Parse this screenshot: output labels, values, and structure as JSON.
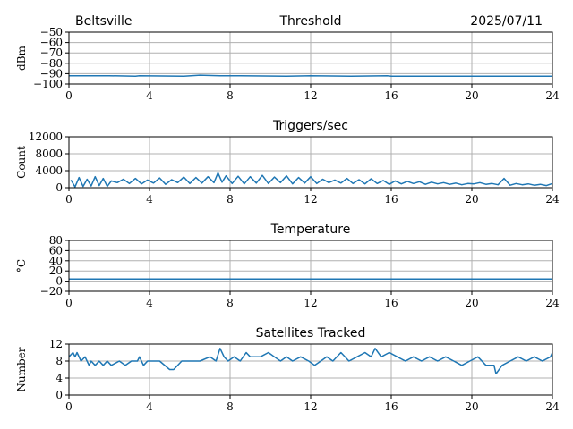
{
  "header": {
    "location": "Beltsville",
    "date": "2025/07/11"
  },
  "colors": {
    "series": "#1f77b4",
    "grid": "#b0b0b0"
  },
  "chart_data": [
    {
      "type": "line",
      "title": "Threshold",
      "ylabel": "dBm",
      "xlim": [
        0,
        24
      ],
      "ylim": [
        -100,
        -50
      ],
      "xticks": [
        0,
        4,
        8,
        12,
        16,
        20,
        24
      ],
      "yticks": [
        -100,
        -90,
        -80,
        -70,
        -60,
        -50
      ],
      "ytick_labels": [
        "−100",
        "−90",
        "−80",
        "−70",
        "−60",
        "−50"
      ],
      "grid": true,
      "series": [
        {
          "x": [
            0,
            2,
            3.3,
            3.5,
            5.7,
            6.5,
            7.5,
            8.5,
            10.8,
            12,
            14,
            15.8,
            16,
            24
          ],
          "y": [
            -92,
            -92,
            -92.5,
            -92,
            -92.5,
            -91.5,
            -92,
            -92,
            -92.5,
            -92,
            -92.5,
            -92,
            -92.5,
            -92.5
          ]
        }
      ]
    },
    {
      "type": "line",
      "title": "Triggers/sec",
      "ylabel": "Count",
      "xlim": [
        0,
        24
      ],
      "ylim": [
        0,
        12000
      ],
      "xticks": [
        0,
        4,
        8,
        12,
        16,
        20,
        24
      ],
      "yticks": [
        0,
        4000,
        8000,
        12000
      ],
      "ytick_labels": [
        "0",
        "4000",
        "8000",
        "12000"
      ],
      "grid": true,
      "series": [
        {
          "x": [
            0.1,
            0.3,
            0.5,
            0.7,
            0.9,
            1.1,
            1.3,
            1.5,
            1.7,
            1.9,
            2.1,
            2.4,
            2.7,
            3.0,
            3.3,
            3.6,
            3.9,
            4.2,
            4.5,
            4.8,
            5.1,
            5.4,
            5.7,
            6.0,
            6.3,
            6.6,
            6.9,
            7.2,
            7.4,
            7.6,
            7.8,
            8.1,
            8.4,
            8.7,
            9.0,
            9.3,
            9.6,
            9.9,
            10.2,
            10.5,
            10.8,
            11.1,
            11.4,
            11.7,
            12.0,
            12.3,
            12.6,
            12.9,
            13.2,
            13.5,
            13.8,
            14.1,
            14.4,
            14.7,
            15.0,
            15.3,
            15.6,
            15.9,
            16.2,
            16.5,
            16.8,
            17.1,
            17.4,
            17.7,
            18.0,
            18.3,
            18.6,
            18.9,
            19.2,
            19.5,
            19.8,
            20.1,
            20.4,
            20.7,
            21.0,
            21.3,
            21.6,
            21.9,
            22.2,
            22.5,
            22.8,
            23.1,
            23.4,
            23.7,
            24.0
          ],
          "y": [
            1800,
            200,
            2400,
            300,
            2000,
            400,
            2600,
            500,
            2200,
            300,
            1600,
            1200,
            2000,
            1000,
            2200,
            900,
            1800,
            1100,
            2300,
            800,
            1900,
            1200,
            2500,
            1000,
            2400,
            1100,
            2600,
            1200,
            3500,
            1300,
            2800,
            1000,
            2700,
            900,
            2600,
            1100,
            2900,
            1000,
            2500,
            1200,
            2800,
            900,
            2400,
            1100,
            2600,
            1000,
            2000,
            1200,
            1800,
            1100,
            2200,
            1000,
            1900,
            900,
            2100,
            1000,
            1700,
            800,
            1600,
            900,
            1500,
            1000,
            1400,
            800,
            1300,
            900,
            1200,
            800,
            1100,
            700,
            1000,
            900,
            1200,
            800,
            1000,
            700,
            2200,
            600,
            1000,
            700,
            900,
            600,
            800,
            500,
            1000
          ]
        }
      ]
    },
    {
      "type": "line",
      "title": "Temperature",
      "ylabel": "°C",
      "xlim": [
        0,
        24
      ],
      "ylim": [
        -20,
        80
      ],
      "xticks": [
        0,
        4,
        8,
        12,
        16,
        20,
        24
      ],
      "yticks": [
        -20,
        0,
        20,
        40,
        60,
        80
      ],
      "ytick_labels": [
        "−20",
        "0",
        "20",
        "40",
        "60",
        "80"
      ],
      "grid": true,
      "series": [
        {
          "x": [
            0,
            24
          ],
          "y": [
            4,
            4
          ]
        }
      ]
    },
    {
      "type": "line",
      "title": "Satellites Tracked",
      "ylabel": "Number",
      "xlim": [
        0,
        24
      ],
      "ylim": [
        0,
        12
      ],
      "xticks": [
        0,
        4,
        8,
        12,
        16,
        20,
        24
      ],
      "yticks": [
        0,
        4,
        8,
        12
      ],
      "ytick_labels": [
        "0",
        "4",
        "8",
        "12"
      ],
      "grid": true,
      "series": [
        {
          "x": [
            0,
            0.2,
            0.3,
            0.4,
            0.6,
            0.8,
            1.0,
            1.1,
            1.3,
            1.5,
            1.7,
            1.9,
            2.1,
            2.5,
            2.8,
            3.1,
            3.4,
            3.5,
            3.7,
            3.9,
            4.1,
            4.5,
            5.0,
            5.2,
            5.6,
            5.8,
            6.0,
            6.5,
            7.0,
            7.3,
            7.5,
            7.7,
            7.9,
            8.2,
            8.5,
            8.8,
            9.0,
            9.5,
            9.9,
            10.2,
            10.5,
            10.8,
            11.1,
            11.5,
            11.9,
            12.2,
            12.5,
            12.8,
            13.1,
            13.5,
            13.9,
            14.3,
            14.7,
            15.0,
            15.2,
            15.5,
            15.9,
            16.3,
            16.7,
            17.1,
            17.5,
            17.9,
            18.3,
            18.7,
            19.1,
            19.5,
            19.9,
            20.3,
            20.7,
            21.1,
            21.2,
            21.5,
            21.9,
            22.3,
            22.7,
            23.1,
            23.5,
            23.9,
            24.0
          ],
          "y": [
            9,
            10,
            9,
            10,
            8,
            9,
            7,
            8,
            7,
            8,
            7,
            8,
            7,
            8,
            7,
            8,
            8,
            9,
            7,
            8,
            8,
            8,
            6,
            6,
            8,
            8,
            8,
            8,
            9,
            8,
            11,
            9,
            8,
            9,
            8,
            10,
            9,
            9,
            10,
            9,
            8,
            9,
            8,
            9,
            8,
            7,
            8,
            9,
            8,
            10,
            8,
            9,
            10,
            9,
            11,
            9,
            10,
            9,
            8,
            9,
            8,
            9,
            8,
            9,
            8,
            7,
            8,
            9,
            7,
            7,
            5,
            7,
            8,
            9,
            8,
            9,
            8,
            9,
            10
          ]
        }
      ]
    }
  ]
}
